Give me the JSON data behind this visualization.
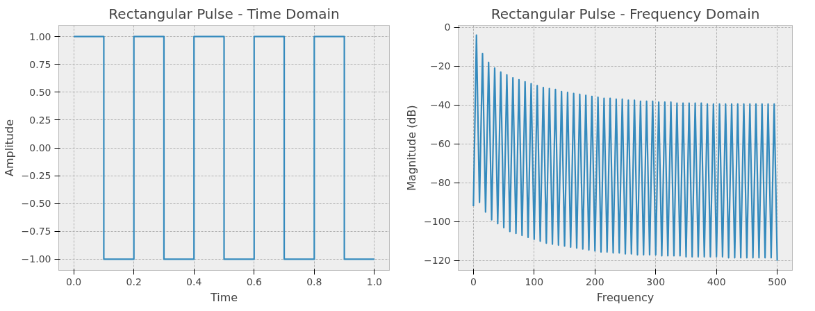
{
  "chart_data": [
    {
      "type": "step",
      "title": "Rectangular Pulse - Time Domain",
      "xlabel": "Time",
      "ylabel": "Amplitude",
      "x": [
        0,
        0.1,
        0.2,
        0.3,
        0.4,
        0.5,
        0.6,
        0.7,
        0.8,
        0.9,
        1.0
      ],
      "series": [
        {
          "color": "#348abd",
          "values": [
            1,
            -1,
            1,
            -1,
            1,
            -1,
            1,
            -1,
            1,
            -1,
            -1
          ]
        }
      ],
      "xlim": [
        -0.05,
        1.05
      ],
      "ylim": [
        -1.1,
        1.1
      ],
      "xticks": [
        {
          "value": 0,
          "label": "0.0"
        },
        {
          "value": 0.2,
          "label": "0.2"
        },
        {
          "value": 0.4,
          "label": "0.4"
        },
        {
          "value": 0.6,
          "label": "0.6"
        },
        {
          "value": 0.8,
          "label": "0.8"
        },
        {
          "value": 1.0,
          "label": "1.0"
        }
      ],
      "yticks": [
        {
          "value": -1,
          "label": "−1.00"
        },
        {
          "value": -0.75,
          "label": "−0.75"
        },
        {
          "value": -0.5,
          "label": "−0.50"
        },
        {
          "value": -0.25,
          "label": "−0.25"
        },
        {
          "value": 0,
          "label": "0.00"
        },
        {
          "value": 0.25,
          "label": "0.25"
        },
        {
          "value": 0.5,
          "label": "0.50"
        },
        {
          "value": 0.75,
          "label": "0.75"
        },
        {
          "value": 1,
          "label": "1.00"
        }
      ],
      "grid": true
    },
    {
      "type": "line",
      "title": "Rectangular Pulse - Frequency Domain",
      "xlabel": "Frequency",
      "ylabel": "Magnitude (dB)",
      "x": [
        0,
        5,
        10,
        15,
        20,
        25,
        30,
        35,
        40,
        45,
        50,
        55,
        60,
        65,
        70,
        75,
        80,
        85,
        90,
        95,
        100,
        105,
        110,
        115,
        120,
        125,
        130,
        135,
        140,
        145,
        150,
        155,
        160,
        165,
        170,
        175,
        180,
        185,
        190,
        195,
        200,
        205,
        210,
        215,
        220,
        225,
        230,
        235,
        240,
        245,
        250,
        255,
        260,
        265,
        270,
        275,
        280,
        285,
        290,
        295,
        300,
        305,
        310,
        315,
        320,
        325,
        330,
        335,
        340,
        345,
        350,
        355,
        360,
        365,
        370,
        375,
        380,
        385,
        390,
        395,
        400,
        405,
        410,
        415,
        420,
        425,
        430,
        435,
        440,
        445,
        450,
        455,
        460,
        465,
        470,
        475,
        480,
        485,
        490,
        495,
        500
      ],
      "series": [
        {
          "color": "#348abd",
          "values": [
            -92,
            -4,
            -90,
            -13.5,
            -95,
            -18,
            -99,
            -21,
            -101,
            -23,
            -103,
            -24.5,
            -105,
            -26,
            -106,
            -27,
            -107,
            -28,
            -108,
            -29,
            -109,
            -30,
            -110,
            -31,
            -111,
            -31.5,
            -111.5,
            -32,
            -112,
            -33,
            -112.5,
            -33.5,
            -113,
            -34,
            -113.5,
            -34.5,
            -114,
            -35,
            -114.5,
            -35.5,
            -115,
            -36,
            -115.5,
            -36.5,
            -115.5,
            -36.5,
            -116,
            -37,
            -116,
            -37,
            -116.5,
            -37.5,
            -116.5,
            -37.5,
            -117,
            -38,
            -117,
            -38,
            -117,
            -38,
            -117,
            -38.5,
            -117.5,
            -38.5,
            -117.5,
            -38.5,
            -117.5,
            -39,
            -117.5,
            -39,
            -118,
            -39,
            -118,
            -39,
            -118,
            -39,
            -118,
            -39.5,
            -118,
            -39.5,
            -118,
            -39.5,
            -118,
            -39.5,
            -118.5,
            -39.5,
            -118.5,
            -39.5,
            -118.5,
            -39.5,
            -118.5,
            -39.5,
            -118.5,
            -39.5,
            -118.5,
            -39.5,
            -118.5,
            -39.5,
            -118.5,
            -39.5,
            -120
          ]
        }
      ],
      "xlim": [
        -25,
        525
      ],
      "ylim": [
        -125,
        1
      ],
      "xticks": [
        0,
        100,
        200,
        300,
        400,
        500
      ],
      "yticks": [
        {
          "value": -120,
          "label": "−120"
        },
        {
          "value": -100,
          "label": "−100"
        },
        {
          "value": -80,
          "label": "−80"
        },
        {
          "value": -60,
          "label": "−60"
        },
        {
          "value": -40,
          "label": "−40"
        },
        {
          "value": -20,
          "label": "−20"
        },
        {
          "value": 0,
          "label": "0"
        }
      ],
      "grid": true
    }
  ]
}
